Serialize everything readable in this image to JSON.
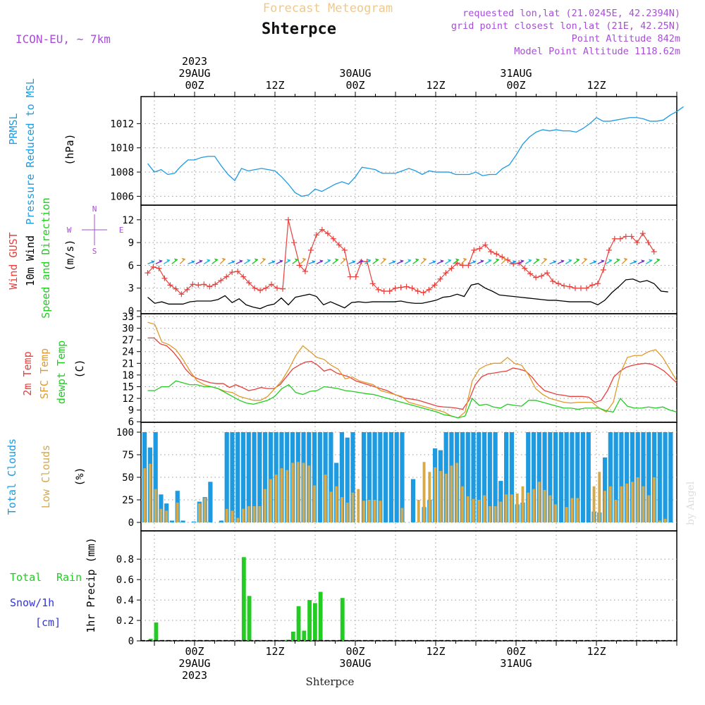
{
  "header": {
    "supertitle": "Forecast Meteogram",
    "title": "Shterpce",
    "model": "ICON-EU, ~ 7km",
    "requested": "requested lon,lat (21.0245E, 42.2394N)",
    "grid_point": "grid point closest lon,lat (21E, 42.25N)",
    "point_altitude": "Point Altitude 842m",
    "model_altitude": "Model Point Altitude 1118.62m",
    "footer_title": "Shterpce",
    "credit": "by Angel"
  },
  "time_axis": {
    "top_labels": [
      {
        "hour": 24,
        "lines": [
          "2023",
          "29AUG",
          "00Z"
        ]
      },
      {
        "hour": 36,
        "lines": [
          "12Z"
        ]
      },
      {
        "hour": 48,
        "lines": [
          "30AUG",
          "00Z"
        ]
      },
      {
        "hour": 60,
        "lines": [
          "12Z"
        ]
      },
      {
        "hour": 72,
        "lines": [
          "31AUG",
          "00Z"
        ]
      },
      {
        "hour": 84,
        "lines": [
          "12Z"
        ]
      }
    ],
    "bottom_labels": [
      {
        "hour": 24,
        "lines": [
          "00Z",
          "29AUG",
          "2023"
        ]
      },
      {
        "hour": 36,
        "lines": [
          "12Z"
        ]
      },
      {
        "hour": 48,
        "lines": [
          "00Z",
          "30AUG"
        ]
      },
      {
        "hour": 60,
        "lines": [
          "12Z"
        ]
      },
      {
        "hour": 72,
        "lines": [
          "00Z",
          "31AUG"
        ]
      },
      {
        "hour": 84,
        "lines": [
          "12Z"
        ]
      }
    ]
  },
  "panels": {
    "pressure": {
      "label_lines": [
        "PRMSL",
        "Pressure Reduced to MSL"
      ],
      "unit": "(hPa)",
      "ylim": [
        1005.5,
        1014.0
      ],
      "ticks": [
        1006,
        1008,
        1010,
        1012
      ]
    },
    "wind": {
      "label_lines": [
        "Wind GUST",
        "10m Wind",
        "Speed and Direction"
      ],
      "unit": "(m/s)",
      "compass": {
        "n": "N",
        "w": "W",
        "e": "E",
        "s": "S"
      },
      "ylim": [
        0,
        13
      ],
      "ticks": [
        0,
        3,
        6,
        9,
        12
      ]
    },
    "temp": {
      "label_lines": [
        "2m Temp",
        "SFC Temp",
        "dewpt Temp"
      ],
      "unit": "(C)",
      "ylim": [
        5.5,
        33
      ],
      "ticks": [
        6,
        9,
        12,
        15,
        18,
        21,
        24,
        27,
        30,
        33
      ]
    },
    "clouds": {
      "label_lines": [
        "Total Clouds",
        "Low Clouds"
      ],
      "unit": "(%)",
      "ylim": [
        0,
        100
      ],
      "ticks": [
        0,
        25,
        50,
        75,
        100
      ]
    },
    "precip": {
      "label_lines": [
        "Total Rain",
        "Snow/1h",
        "[cm]"
      ],
      "unit": "1hr Precip (mm)",
      "ylim": [
        0,
        0.96
      ],
      "ticks": [
        "0",
        "0.2",
        "0.4",
        "0.6",
        "0.8"
      ]
    }
  },
  "colors": {
    "pressure": "#1e9be0",
    "gust": "#e8403c",
    "wind10m": "#000000",
    "direction": "#22cc22",
    "temp2m": "#e8403c",
    "sfc": "#e09a2c",
    "dewpt": "#22cc22",
    "total_clouds": "#1e9be0",
    "low_clouds": "#d6a94a",
    "rain": "#22cc22",
    "snow": "#3333dd",
    "header_purple": "#a64fd4",
    "supertitle": "#f0c88c"
  },
  "chart_data": [
    {
      "type": "line",
      "name": "pressure",
      "title": "PRMSL",
      "ylabel": "Pressure Reduced to MSL (hPa)",
      "x_start_hour": 17,
      "x_step": 1,
      "values": [
        1008.7,
        1008.0,
        1008.2,
        1007.8,
        1007.9,
        1008.5,
        1009.0,
        1009.0,
        1009.2,
        1009.3,
        1009.3,
        1008.5,
        1007.8,
        1007.3,
        1008.3,
        1008.1,
        1008.2,
        1008.3,
        1008.2,
        1008.1,
        1007.6,
        1007.0,
        1006.3,
        1006.0,
        1006.1,
        1006.6,
        1006.4,
        1006.7,
        1007.0,
        1007.2,
        1007.0,
        1007.6,
        1008.4,
        1008.3,
        1008.2,
        1007.9,
        1007.9,
        1007.9,
        1008.1,
        1008.3,
        1008.1,
        1007.8,
        1008.1,
        1008.0,
        1008.0,
        1008.0,
        1007.8,
        1007.8,
        1007.8,
        1008.0,
        1007.7,
        1007.8,
        1007.8,
        1008.3,
        1008.6,
        1009.4,
        1010.3,
        1010.9,
        1011.3,
        1011.5,
        1011.4,
        1011.5,
        1011.4,
        1011.4,
        1011.3,
        1011.6,
        1012.0,
        1012.5,
        1012.2,
        1012.2,
        1012.3,
        1012.4,
        1012.5,
        1012.5,
        1012.4,
        1012.2,
        1012.2,
        1012.3,
        1012.7,
        1013.0,
        1013.4
      ]
    },
    {
      "type": "line",
      "name": "wind",
      "ylabel": "(m/s)",
      "x_start_hour": 17,
      "x_step": 1,
      "series": [
        {
          "name": "Wind GUST",
          "values": [
            5.0,
            5.8,
            5.6,
            4.3,
            3.4,
            2.9,
            2.2,
            2.8,
            3.5,
            3.4,
            3.5,
            3.2,
            3.5,
            4.0,
            4.5,
            5.1,
            5.2,
            4.5,
            3.7,
            3.0,
            2.7,
            3.0,
            3.5,
            3.0,
            2.9,
            12.0,
            9.0,
            6.0,
            5.2,
            8.0,
            10.0,
            10.7,
            10.2,
            9.5,
            8.7,
            8.0,
            4.5,
            4.5,
            6.5,
            6.5,
            3.6,
            2.8,
            2.6,
            2.6,
            3.0,
            3.1,
            3.2,
            3.0,
            2.6,
            2.4,
            2.8,
            3.4,
            4.2,
            5.0,
            5.6,
            6.3,
            6.0,
            6.0,
            8.0,
            8.2,
            8.7,
            7.8,
            7.5,
            7.1,
            6.7,
            6.2,
            6.3,
            5.6,
            4.9,
            4.4,
            4.6,
            5.0,
            3.9,
            3.6,
            3.3,
            3.2,
            3.0,
            3.0,
            3.0,
            3.4,
            3.6,
            5.4,
            8.0,
            9.5,
            9.5,
            9.8,
            9.8,
            9.0,
            10.2,
            9.0,
            7.8
          ]
        },
        {
          "name": "10m Wind",
          "values": [
            1.8,
            1.0,
            1.2,
            0.9,
            0.9,
            0.9,
            1.2,
            1.3,
            1.3,
            1.3,
            1.5,
            2.0,
            1.1,
            1.6,
            0.8,
            0.5,
            0.3,
            0.7,
            0.9,
            1.7,
            0.8,
            1.8,
            2.0,
            2.2,
            1.9,
            0.8,
            1.2,
            0.8,
            0.4,
            1.1,
            1.2,
            1.1,
            1.2,
            1.2,
            1.2,
            1.2,
            1.3,
            1.1,
            1.0,
            1.0,
            1.2,
            1.4,
            1.8,
            1.9,
            2.2,
            1.9,
            3.4,
            3.6,
            3.0,
            2.6,
            2.1,
            2.0,
            1.9,
            1.8,
            1.7,
            1.6,
            1.5,
            1.4,
            1.4,
            1.3,
            1.2,
            1.2,
            1.2,
            1.2,
            0.8,
            1.4,
            2.4,
            3.2,
            4.1,
            4.2,
            3.8,
            4.0,
            3.6,
            2.6,
            2.5
          ]
        }
      ]
    },
    {
      "type": "line",
      "name": "temperature",
      "ylabel": "(C)",
      "x_start_hour": 17,
      "x_step": 1,
      "series": [
        {
          "name": "2m Temp",
          "values": [
            27.5,
            27.5,
            26.0,
            25.5,
            24.0,
            22.0,
            19.5,
            17.8,
            17.0,
            16.5,
            16.0,
            15.8,
            15.8,
            14.8,
            15.5,
            14.8,
            14.0,
            14.3,
            14.8,
            14.5,
            14.5,
            15.5,
            17.5,
            19.5,
            20.5,
            21.3,
            21.5,
            20.5,
            19.0,
            19.5,
            18.5,
            18.0,
            17.5,
            16.5,
            16.0,
            15.5,
            15.0,
            14.5,
            14.0,
            13.2,
            12.5,
            12.0,
            11.8,
            11.5,
            11.0,
            10.5,
            10.0,
            9.8,
            9.7,
            9.5,
            9.2,
            11.5,
            15.5,
            17.5,
            18.3,
            18.5,
            18.8,
            19.0,
            19.8,
            19.5,
            19.0,
            17.5,
            15.5,
            14.0,
            13.5,
            13.0,
            12.8,
            12.5,
            12.5,
            12.5,
            12.3,
            11.0,
            11.5,
            14.0,
            17.5,
            19.0,
            20.0,
            20.5,
            20.8,
            21.0,
            20.8,
            20.0,
            19.0,
            17.5,
            16.0
          ]
        },
        {
          "name": "SFC Temp",
          "values": [
            31.5,
            31.0,
            26.5,
            25.8,
            24.5,
            22.0,
            19.0,
            16.5,
            15.5,
            15.0,
            14.5,
            13.8,
            13.5,
            12.5,
            12.0,
            11.5,
            11.5,
            12.5,
            14.5,
            16.5,
            19.5,
            23.0,
            25.5,
            24.0,
            22.5,
            22.0,
            20.5,
            19.5,
            17.0,
            17.5,
            16.5,
            16.0,
            15.5,
            14.0,
            13.5,
            13.0,
            12.5,
            11.0,
            10.5,
            10.0,
            9.5,
            9.0,
            8.5,
            7.5,
            7.0,
            8.5,
            16.5,
            19.5,
            20.5,
            21.0,
            21.0,
            22.5,
            21.0,
            20.5,
            18.0,
            14.5,
            13.0,
            12.0,
            11.5,
            11.0,
            10.8,
            11.0,
            11.0,
            11.0,
            9.5,
            8.5,
            11.0,
            18.5,
            22.5,
            23.0,
            23.0,
            24.0,
            24.5,
            22.5,
            19.5,
            16.5
          ]
        },
        {
          "name": "dewpt Temp",
          "values": [
            14.0,
            14.0,
            15.0,
            15.0,
            16.5,
            16.0,
            15.5,
            15.5,
            15.0,
            15.0,
            14.5,
            13.5,
            12.5,
            11.5,
            10.8,
            10.5,
            11.0,
            11.5,
            12.5,
            14.5,
            15.5,
            13.5,
            13.0,
            13.8,
            14.0,
            15.0,
            14.8,
            14.5,
            14.0,
            13.8,
            13.5,
            13.2,
            13.0,
            12.5,
            12.0,
            11.5,
            11.0,
            10.5,
            10.0,
            9.5,
            9.0,
            8.5,
            7.8,
            7.5,
            7.0,
            7.5,
            12.0,
            10.2,
            10.5,
            9.8,
            9.5,
            10.5,
            10.2,
            10.0,
            11.5,
            11.5,
            11.0,
            10.5,
            10.0,
            9.5,
            9.5,
            9.2,
            9.5,
            9.5,
            9.5,
            8.8,
            8.5,
            12.0,
            10.0,
            9.5,
            9.5,
            9.8,
            9.5,
            9.8,
            9.0,
            8.5
          ]
        }
      ]
    },
    {
      "type": "bar",
      "name": "clouds",
      "ylabel": "(%)",
      "x_start_hour": 17,
      "x_step": 1,
      "series": [
        {
          "name": "Total Clouds",
          "values": [
            100,
            83,
            100,
            31,
            21,
            2,
            35,
            2,
            0,
            1,
            23,
            28,
            45,
            0,
            2,
            100,
            100,
            100,
            100,
            100,
            100,
            100,
            100,
            100,
            100,
            100,
            100,
            100,
            100,
            100,
            100,
            100,
            100,
            100,
            100,
            66,
            100,
            94,
            100,
            0,
            100,
            100,
            100,
            100,
            100,
            100,
            100,
            100,
            0,
            48,
            0,
            17,
            25,
            82,
            80,
            100,
            100,
            100,
            100,
            100,
            100,
            100,
            100,
            100,
            100,
            46,
            100,
            100,
            20,
            22,
            100,
            100,
            100,
            100,
            100,
            100,
            100,
            100,
            100,
            100,
            100,
            100,
            12,
            11,
            72,
            100,
            100,
            100,
            100,
            100,
            100,
            100,
            100,
            100,
            100,
            100,
            100
          ]
        },
        {
          "name": "Low Clouds",
          "values": [
            60,
            65,
            37,
            15,
            13,
            0,
            22,
            0,
            0,
            0,
            21,
            27,
            0,
            0,
            0,
            15,
            13,
            5,
            15,
            18,
            18,
            18,
            37,
            48,
            53,
            60,
            58,
            66,
            67,
            66,
            63,
            41,
            0,
            53,
            34,
            40,
            28,
            22,
            33,
            37,
            24,
            25,
            25,
            24,
            0,
            0,
            0,
            16,
            0,
            0,
            25,
            67,
            56,
            61,
            57,
            54,
            63,
            66,
            40,
            29,
            26,
            25,
            30,
            18,
            18,
            23,
            31,
            31,
            32,
            40,
            33,
            37,
            45,
            36,
            30,
            20,
            0,
            17,
            27,
            27,
            0,
            0,
            40,
            56,
            35,
            40,
            25,
            40,
            43,
            45,
            50,
            40,
            30,
            50,
            2,
            4,
            0
          ]
        }
      ]
    },
    {
      "type": "bar",
      "name": "precip",
      "ylabel": "1hr Precip (mm)",
      "x_start_hour": 17,
      "x_step": 1,
      "series": [
        {
          "name": "Total Rain",
          "values": [
            0,
            0.02,
            0.18,
            0,
            0,
            0,
            0,
            0,
            0,
            0,
            0,
            0,
            0,
            0,
            0,
            0,
            0,
            0,
            0.82,
            0.44,
            0,
            0,
            0,
            0,
            0,
            0,
            0.01,
            0.09,
            0.34,
            0.1,
            0.4,
            0.37,
            0.48,
            0,
            0,
            0,
            0.42,
            0,
            0,
            0,
            0,
            0,
            0,
            0,
            0,
            0,
            0,
            0,
            0,
            0,
            0,
            0,
            0,
            0,
            0,
            0,
            0,
            0,
            0,
            0,
            0,
            0,
            0,
            0,
            0,
            0,
            0,
            0,
            0,
            0,
            0,
            0,
            0,
            0,
            0,
            0,
            0,
            0,
            0,
            0,
            0,
            0,
            0,
            0,
            0,
            0,
            0,
            0,
            0,
            0,
            0,
            0,
            0,
            0,
            0,
            0,
            0
          ]
        }
      ]
    }
  ]
}
